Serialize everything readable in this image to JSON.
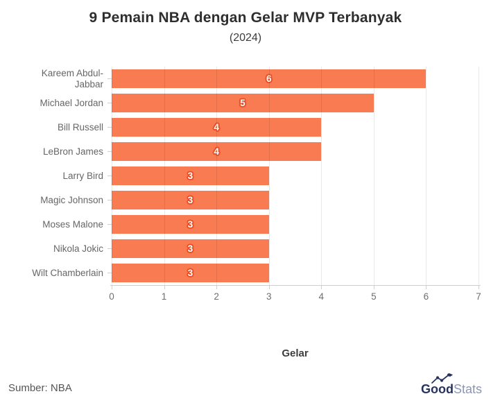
{
  "header": {
    "title": "9 Pemain NBA dengan Gelar MVP Terbanyak",
    "subtitle": "(2024)"
  },
  "chart_data": {
    "type": "bar",
    "orientation": "horizontal",
    "title": "9 Pemain NBA dengan Gelar MVP Terbanyak",
    "subtitle": "(2024)",
    "categories": [
      "Kareem Abdul-Jabbar",
      "Michael Jordan",
      "Bill Russell",
      "LeBron James",
      "Larry Bird",
      "Magic Johnson",
      "Moses Malone",
      "Nikola Jokic",
      "Wilt Chamberlain"
    ],
    "values": [
      6,
      5,
      4,
      4,
      3,
      3,
      3,
      3,
      3
    ],
    "value_labels": [
      "6",
      "5",
      "4",
      "4",
      "3",
      "3",
      "3",
      "3",
      "3"
    ],
    "xlabel": "Gelar",
    "ylabel": "",
    "xlim": [
      0,
      7
    ],
    "xticks": [
      0,
      1,
      2,
      3,
      4,
      5,
      6,
      7
    ],
    "grid": true,
    "legend": false
  },
  "footer": {
    "source": "Sumber: NBA",
    "logo": {
      "bold": "Good",
      "light": "Stats"
    }
  },
  "colors": {
    "bar": "#f87b51",
    "value_label": "#ffffff",
    "value_label_outline": "#ec4f25",
    "axis": "#cfcfcf",
    "category_text": "#666666",
    "tick_text": "#6e6e6e",
    "title_text": "#2e2e2e",
    "logo_navy": "#27335e",
    "logo_light_blue": "#8b95b5"
  }
}
